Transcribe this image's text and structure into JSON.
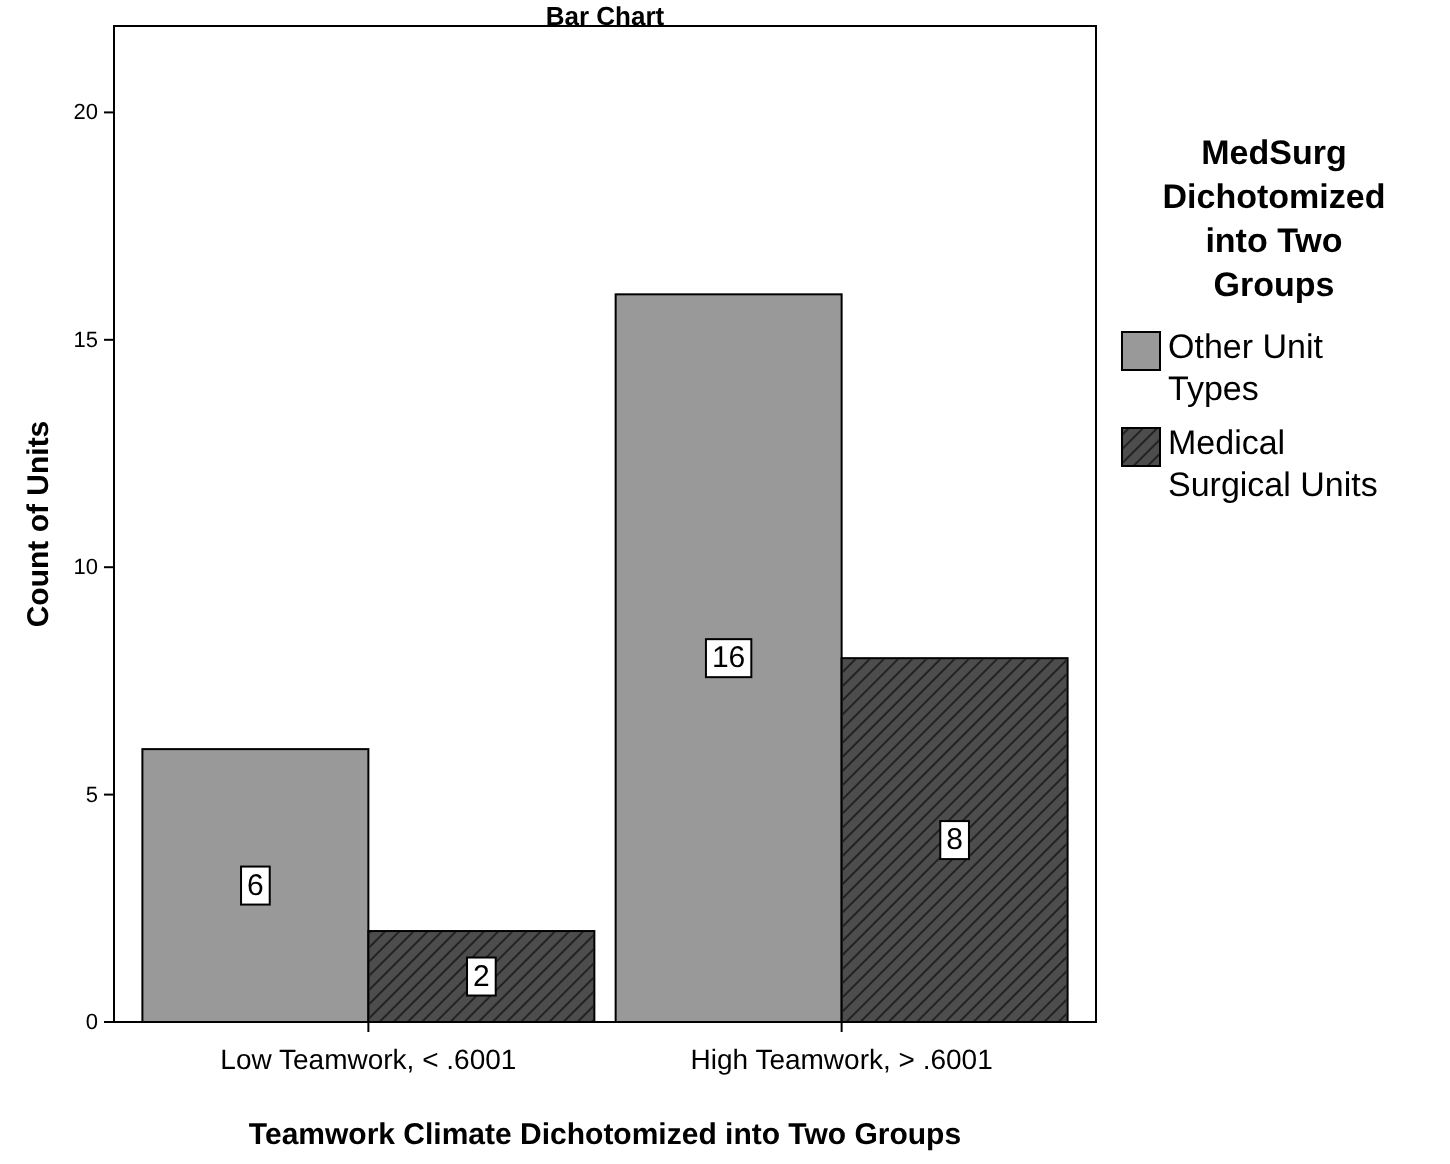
{
  "chart_data": {
    "type": "bar",
    "title": "Bar Chart",
    "xlabel": "Teamwork Climate Dichotomized into Two Groups",
    "ylabel": "Count of Units",
    "legend_title": "MedSurg Dichotomized into Two Groups",
    "categories": [
      "Low Teamwork, < .6001",
      "High Teamwork, > .6001"
    ],
    "series": [
      {
        "name": "Other Unit Types",
        "color": "#999999",
        "values": [
          6,
          16
        ]
      },
      {
        "name": "Medical Surgical Units",
        "color": "#4d4d4d",
        "values": [
          2,
          8
        ]
      }
    ],
    "ylim": [
      0,
      21.9
    ],
    "yticks": [
      0,
      5,
      10,
      15,
      20
    ],
    "grid": false,
    "legend": "right",
    "data_labels": true
  }
}
